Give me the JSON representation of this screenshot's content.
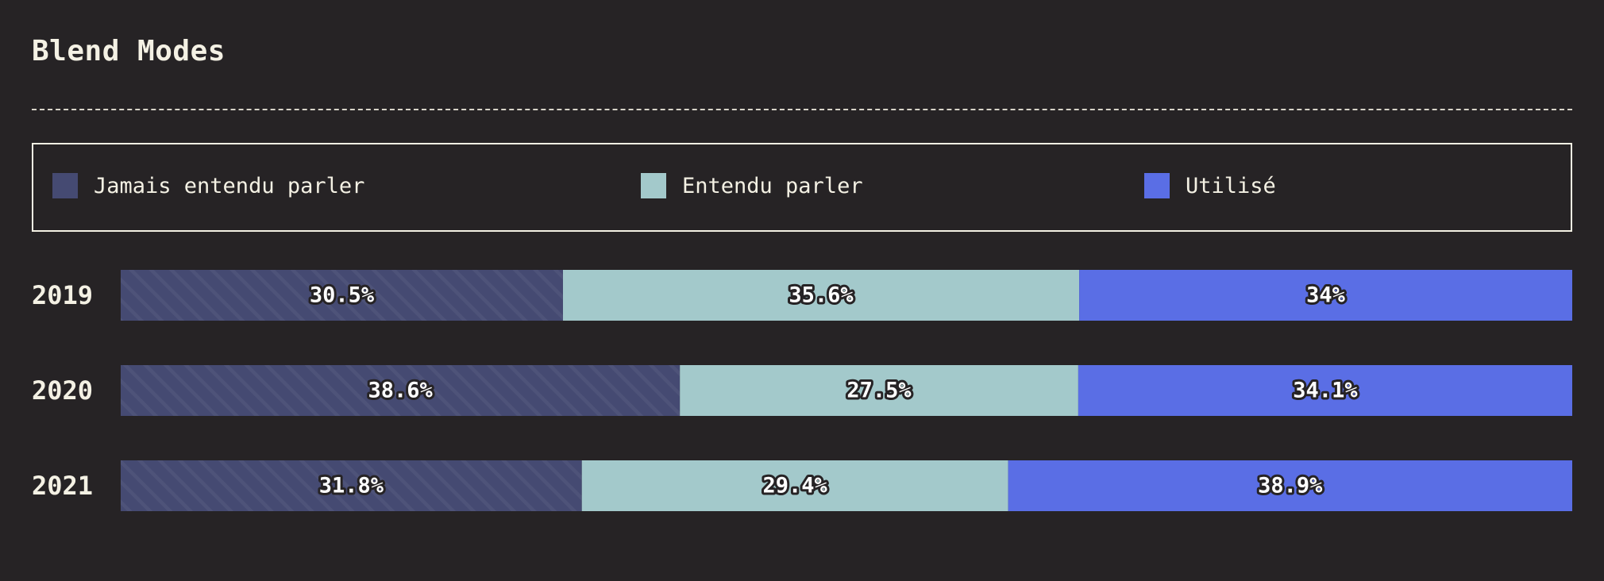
{
  "chart_data": {
    "type": "bar",
    "orientation": "horizontal",
    "stacked": true,
    "title": "Blend Modes",
    "categories": [
      "2019",
      "2020",
      "2021"
    ],
    "series": [
      {
        "name": "Jamais entendu parler",
        "color": "#454a72",
        "values": [
          30.5,
          38.6,
          31.8
        ],
        "labels": [
          "30.5%",
          "38.6%",
          "31.8%"
        ]
      },
      {
        "name": "Entendu parler",
        "color": "#a3c9cb",
        "values": [
          35.6,
          27.5,
          29.4
        ],
        "labels": [
          "35.6%",
          "27.5%",
          "29.4%"
        ]
      },
      {
        "name": "Utilisé",
        "color": "#5a6ee5",
        "values": [
          34,
          34.1,
          38.9
        ],
        "labels": [
          "34%",
          "34.1%",
          "38.9%"
        ]
      }
    ],
    "legend_position": "top",
    "grid": false
  }
}
